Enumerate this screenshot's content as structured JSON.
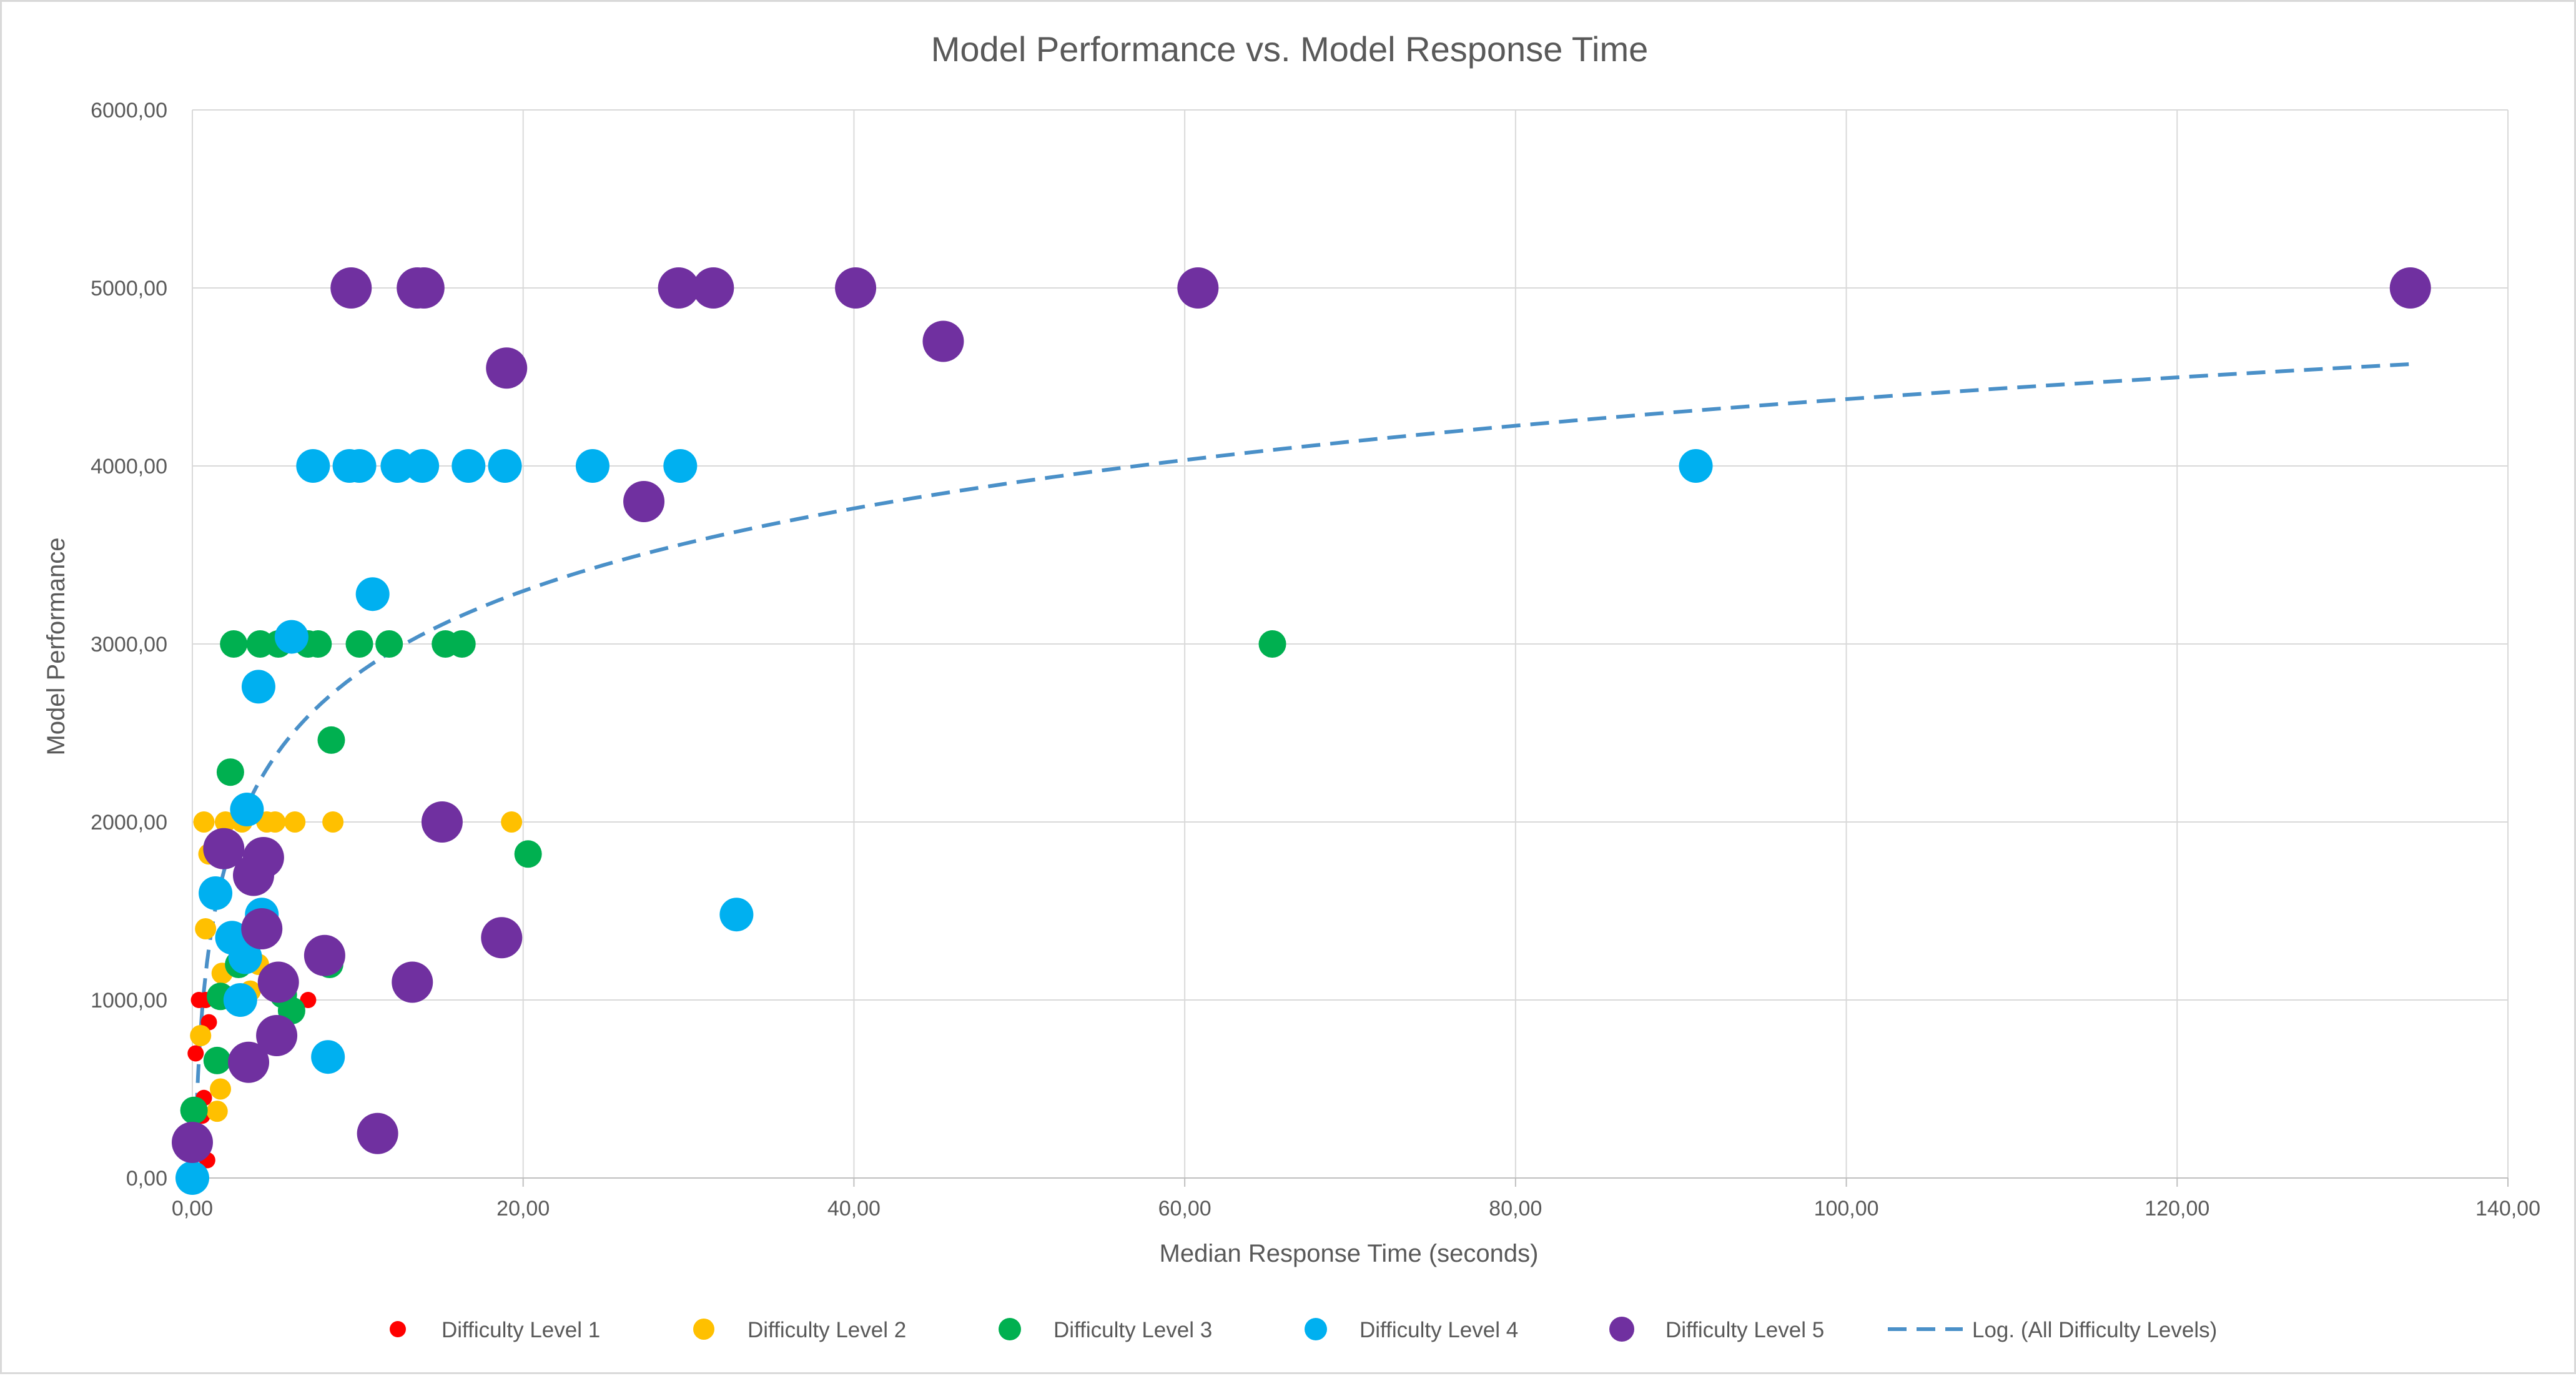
{
  "chart_data": {
    "type": "scatter",
    "title": "Model Performance vs. Model Response Time",
    "xlabel": "Median Response Time (seconds)",
    "ylabel": "Model Performance",
    "xlim": [
      0,
      140
    ],
    "ylim": [
      0,
      6000
    ],
    "x_ticks": [
      0,
      20,
      40,
      60,
      80,
      100,
      120,
      140
    ],
    "y_ticks": [
      0,
      1000,
      2000,
      3000,
      4000,
      5000,
      6000
    ],
    "x_tick_labels": [
      "0,00",
      "20,00",
      "40,00",
      "60,00",
      "80,00",
      "100,00",
      "120,00",
      "140,00"
    ],
    "y_tick_labels": [
      "0,00",
      "1000,00",
      "2000,00",
      "3000,00",
      "4000,00",
      "5000,00",
      "6000,00"
    ],
    "grid": true,
    "legend_position": "bottom",
    "series": [
      {
        "name": "Difficulty Level 1",
        "color": "#ff0000",
        "marker_size": "small",
        "points": [
          [
            0.2,
            700
          ],
          [
            0.4,
            1000
          ],
          [
            0.6,
            350
          ],
          [
            0.7,
            450
          ],
          [
            0.8,
            1000
          ],
          [
            0.9,
            100
          ],
          [
            1.0,
            875
          ],
          [
            1.3,
            650
          ],
          [
            7.0,
            1000
          ]
        ]
      },
      {
        "name": "Difficulty Level 2",
        "color": "#ffc000",
        "marker_size": "medium",
        "points": [
          [
            0.5,
            800
          ],
          [
            0.7,
            2000
          ],
          [
            0.8,
            1400
          ],
          [
            1.0,
            1820
          ],
          [
            1.5,
            375
          ],
          [
            1.7,
            500
          ],
          [
            1.8,
            1150
          ],
          [
            2.0,
            2000
          ],
          [
            2.5,
            1000
          ],
          [
            3.0,
            2000
          ],
          [
            3.5,
            1050
          ],
          [
            4.0,
            1200
          ],
          [
            4.5,
            2000
          ],
          [
            5.0,
            2000
          ],
          [
            6.2,
            2000
          ],
          [
            8.5,
            2000
          ],
          [
            19.3,
            2000
          ]
        ]
      },
      {
        "name": "Difficulty Level 3",
        "color": "#00b050",
        "marker_size": "large",
        "points": [
          [
            0.1,
            380
          ],
          [
            1.5,
            660
          ],
          [
            1.7,
            1020
          ],
          [
            2.3,
            2280
          ],
          [
            2.5,
            3000
          ],
          [
            2.8,
            1200
          ],
          [
            3.0,
            660
          ],
          [
            4.1,
            3000
          ],
          [
            5.2,
            3000
          ],
          [
            5.5,
            1030
          ],
          [
            6.0,
            940
          ],
          [
            7.0,
            3000
          ],
          [
            7.6,
            3000
          ],
          [
            8.3,
            1200
          ],
          [
            8.4,
            2460
          ],
          [
            10.1,
            3000
          ],
          [
            11.9,
            3000
          ],
          [
            15.3,
            3000
          ],
          [
            16.3,
            3000
          ],
          [
            20.3,
            1820
          ],
          [
            65.3,
            3000
          ]
        ]
      },
      {
        "name": "Difficulty Level 4",
        "color": "#00b0f0",
        "marker_size": "xlarge",
        "points": [
          [
            0.0,
            0
          ],
          [
            1.4,
            1600
          ],
          [
            2.4,
            1350
          ],
          [
            2.9,
            1000
          ],
          [
            3.2,
            1240
          ],
          [
            3.3,
            2070
          ],
          [
            4.0,
            2760
          ],
          [
            4.2,
            1480
          ],
          [
            6.0,
            3040
          ],
          [
            7.3,
            4000
          ],
          [
            8.2,
            680
          ],
          [
            9.5,
            4000
          ],
          [
            10.1,
            4000
          ],
          [
            10.9,
            3280
          ],
          [
            12.4,
            4000
          ],
          [
            13.9,
            4000
          ],
          [
            16.7,
            4000
          ],
          [
            18.9,
            4000
          ],
          [
            24.2,
            4000
          ],
          [
            29.5,
            4000
          ],
          [
            32.9,
            1480
          ],
          [
            90.9,
            4000
          ]
        ]
      },
      {
        "name": "Difficulty Level 5",
        "color": "#7030a0",
        "marker_size": "xxlarge",
        "points": [
          [
            0.0,
            200
          ],
          [
            1.9,
            1850
          ],
          [
            3.4,
            650
          ],
          [
            3.7,
            1700
          ],
          [
            4.2,
            1400
          ],
          [
            4.3,
            1800
          ],
          [
            5.1,
            800
          ],
          [
            5.2,
            1100
          ],
          [
            8.0,
            1250
          ],
          [
            9.6,
            5000
          ],
          [
            11.2,
            250
          ],
          [
            13.3,
            1100
          ],
          [
            13.6,
            5000
          ],
          [
            14.0,
            5000
          ],
          [
            15.1,
            2000
          ],
          [
            18.7,
            1350
          ],
          [
            19.0,
            4550
          ],
          [
            27.3,
            3800
          ],
          [
            29.4,
            5000
          ],
          [
            31.5,
            5000
          ],
          [
            40.1,
            5000
          ],
          [
            45.4,
            4700
          ],
          [
            60.8,
            5000
          ],
          [
            134.1,
            5000
          ]
        ]
      }
    ],
    "trendline": {
      "name": "Log. (All Difficulty Levels)",
      "type": "logarithmic",
      "color": "#4a90c8",
      "style": "dashed",
      "a": 670,
      "b": 1290,
      "x_range": [
        0.2,
        134.1
      ]
    }
  }
}
